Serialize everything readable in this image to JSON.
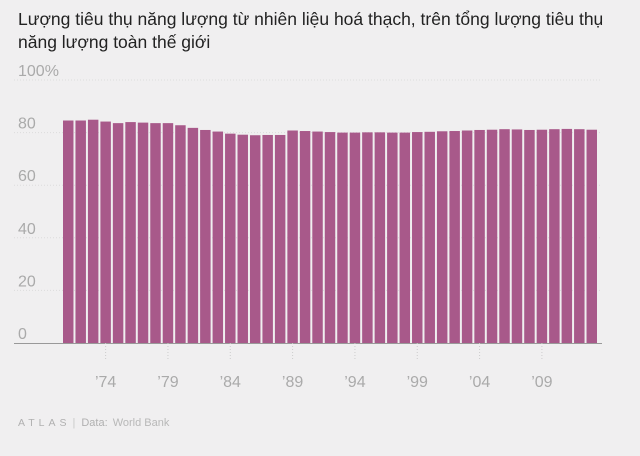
{
  "chart_data": {
    "type": "bar",
    "title": "Lượng tiêu thụ năng lượng từ nhiên liệu hoá thạch, trên tổng lượng tiêu thụ năng lượng toàn thế giới",
    "xlabel": "",
    "ylabel": "",
    "x": [
      1971,
      1972,
      1973,
      1974,
      1975,
      1976,
      1977,
      1978,
      1979,
      1980,
      1981,
      1982,
      1983,
      1984,
      1985,
      1986,
      1987,
      1988,
      1989,
      1990,
      1991,
      1992,
      1993,
      1994,
      1995,
      1996,
      1997,
      1998,
      1999,
      2000,
      2001,
      2002,
      2003,
      2004,
      2005,
      2006,
      2007,
      2008,
      2009,
      2010,
      2011,
      2012,
      2013
    ],
    "values": [
      84.6,
      84.6,
      84.9,
      84.2,
      83.6,
      84.0,
      83.8,
      83.6,
      83.6,
      82.8,
      81.8,
      81.0,
      80.4,
      79.6,
      79.2,
      79.0,
      79.1,
      79.1,
      80.8,
      80.6,
      80.4,
      80.2,
      80.0,
      80.0,
      80.1,
      80.1,
      80.0,
      80.0,
      80.2,
      80.3,
      80.5,
      80.6,
      80.8,
      81.0,
      81.1,
      81.3,
      81.2,
      81.0,
      81.1,
      81.3,
      81.4,
      81.3,
      81.1
    ],
    "ylim": [
      0,
      100
    ],
    "y_ticks": [
      "0",
      "20",
      "40",
      "60",
      "80",
      "100%"
    ],
    "x_ticks": [
      {
        "year": 1974,
        "label": "’74"
      },
      {
        "year": 1979,
        "label": "’79"
      },
      {
        "year": 1984,
        "label": "’84"
      },
      {
        "year": 1989,
        "label": "’89"
      },
      {
        "year": 1994,
        "label": "’94"
      },
      {
        "year": 1999,
        "label": "’99"
      },
      {
        "year": 2004,
        "label": "’04"
      },
      {
        "year": 2009,
        "label": "’09"
      }
    ],
    "bar_color": "#a8598a",
    "axis_color": "#999999",
    "grid": true
  },
  "footer": {
    "brand": "ATLAS",
    "source_label": "Data:",
    "source": "World Bank"
  }
}
